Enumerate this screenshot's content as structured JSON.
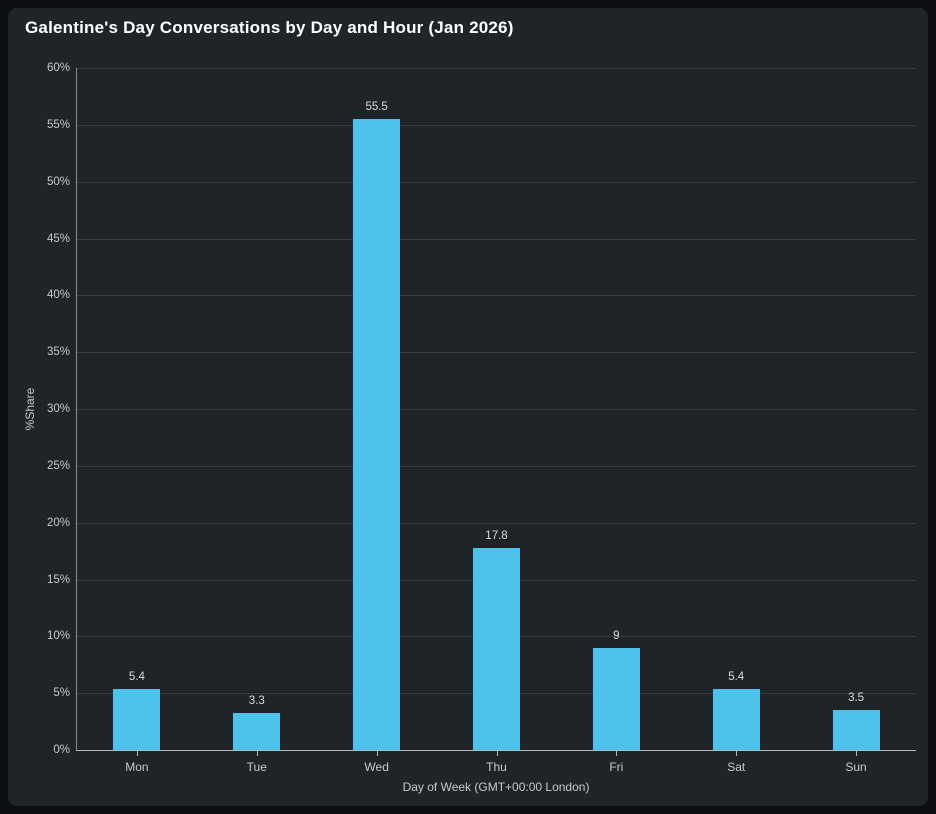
{
  "colors": {
    "bar": "#4cc2eb",
    "panel_background": "#1f2429",
    "page_background": "#0c0e11",
    "gridline": "#383d44",
    "axis_text": "#c6c9cd",
    "title_text": "#ffffff"
  },
  "chart_data": {
    "type": "bar",
    "title": "Galentine's Day Conversations by Day and Hour (Jan 2026)",
    "categories": [
      "Mon",
      "Tue",
      "Wed",
      "Thu",
      "Fri",
      "Sat",
      "Sun"
    ],
    "values": [
      5.4,
      3.3,
      55.5,
      17.8,
      9,
      5.4,
      3.5
    ],
    "bar_labels": [
      "5.4",
      "3.3",
      "55.5",
      "17.8",
      "9",
      "5.4",
      "3.5"
    ],
    "xlabel": "Day of Week (GMT+00:00 London)",
    "ylabel": "%Share",
    "ylim": [
      0,
      60
    ],
    "ytick_step": 5,
    "ytick_suffix": "%",
    "grid": true,
    "legend": false
  }
}
